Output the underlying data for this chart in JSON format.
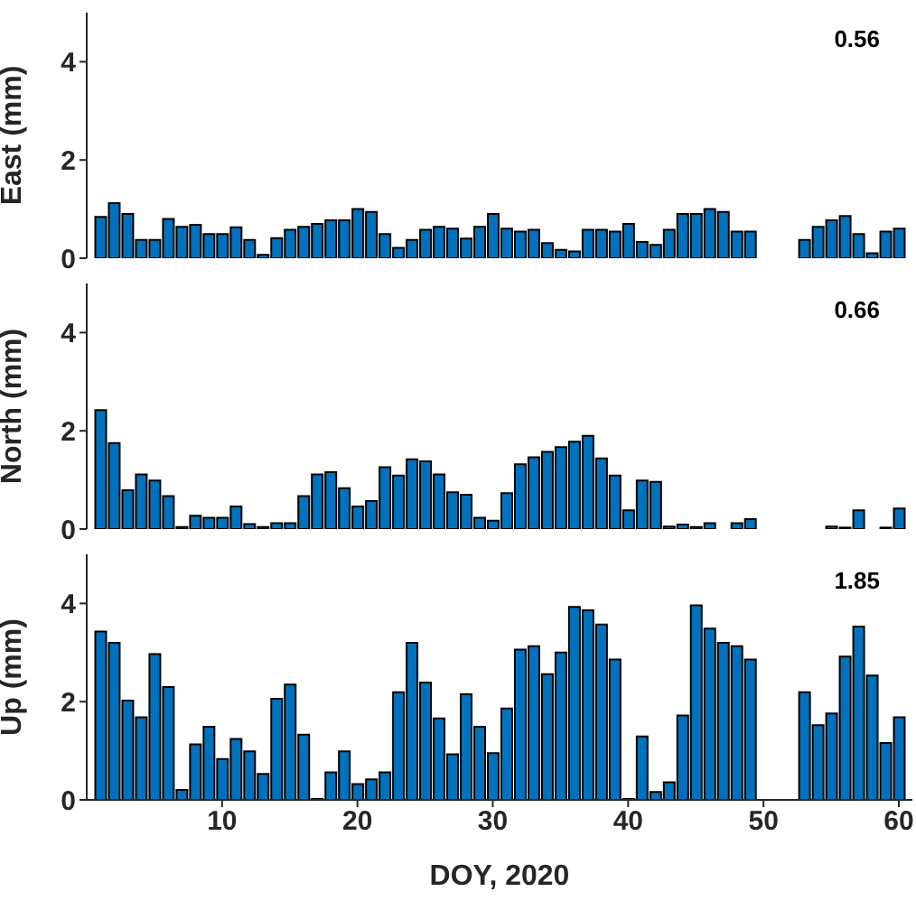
{
  "chart_data": [
    {
      "type": "bar",
      "ylabel": "East (mm)",
      "annotations": [
        "0.56"
      ],
      "color": "#0072bd",
      "x": [
        1,
        2,
        3,
        4,
        5,
        6,
        7,
        8,
        9,
        10,
        11,
        12,
        13,
        14,
        15,
        16,
        17,
        18,
        19,
        20,
        21,
        22,
        23,
        24,
        25,
        26,
        27,
        28,
        29,
        30,
        31,
        32,
        33,
        34,
        35,
        36,
        37,
        38,
        39,
        40,
        41,
        42,
        43,
        44,
        45,
        46,
        47,
        48,
        49,
        50,
        51,
        52,
        53,
        54,
        55,
        56,
        57,
        58,
        59,
        60
      ],
      "values": [
        0.84,
        1.12,
        0.9,
        0.37,
        0.37,
        0.8,
        0.64,
        0.68,
        0.49,
        0.49,
        0.63,
        0.37,
        0.07,
        0.41,
        0.58,
        0.64,
        0.7,
        0.77,
        0.77,
        1.0,
        0.94,
        0.49,
        0.21,
        0.37,
        0.58,
        0.64,
        0.6,
        0.4,
        0.64,
        0.9,
        0.6,
        0.54,
        0.58,
        0.31,
        0.17,
        0.14,
        0.58,
        0.58,
        0.54,
        0.7,
        0.33,
        0.27,
        0.58,
        0.9,
        0.9,
        1.0,
        0.94,
        0.54,
        0.54,
        null,
        null,
        null,
        0.37,
        0.64,
        0.77,
        0.86,
        0.49,
        0.1,
        0.54,
        0.6
      ],
      "xlim": [
        0,
        61
      ],
      "xticks": [
        10,
        20,
        30,
        40,
        50,
        60
      ],
      "ylim": [
        0,
        5
      ],
      "yticks": [
        0,
        2,
        4
      ],
      "tick_labels": "y",
      "grid": false,
      "legend": false
    },
    {
      "type": "bar",
      "ylabel": "North (mm)",
      "annotations": [
        "0.66"
      ],
      "color": "#0072bd",
      "x": [
        1,
        2,
        3,
        4,
        5,
        6,
        7,
        8,
        9,
        10,
        11,
        12,
        13,
        14,
        15,
        16,
        17,
        18,
        19,
        20,
        21,
        22,
        23,
        24,
        25,
        26,
        27,
        28,
        29,
        30,
        31,
        32,
        33,
        34,
        35,
        36,
        37,
        38,
        39,
        40,
        41,
        42,
        43,
        44,
        45,
        46,
        47,
        48,
        49,
        50,
        51,
        52,
        53,
        54,
        55,
        56,
        57,
        58,
        59,
        60
      ],
      "values": [
        2.42,
        1.75,
        0.79,
        1.11,
        0.99,
        0.67,
        0.04,
        0.27,
        0.23,
        0.23,
        0.46,
        0.1,
        0.04,
        0.12,
        0.12,
        0.67,
        1.11,
        1.16,
        0.83,
        0.46,
        0.57,
        1.26,
        1.09,
        1.42,
        1.38,
        1.11,
        0.75,
        0.7,
        0.23,
        0.17,
        0.73,
        1.32,
        1.46,
        1.57,
        1.67,
        1.78,
        1.9,
        1.44,
        1.09,
        0.38,
        0.99,
        0.96,
        0.05,
        0.09,
        0.04,
        0.12,
        null,
        0.12,
        0.2,
        null,
        null,
        null,
        null,
        null,
        0.05,
        0.03,
        0.38,
        null,
        0.03,
        0.42
      ],
      "xlim": [
        0,
        61
      ],
      "xticks": [
        10,
        20,
        30,
        40,
        50,
        60
      ],
      "ylim": [
        0,
        5
      ],
      "yticks": [
        0,
        2,
        4
      ],
      "tick_labels": "y",
      "grid": false,
      "legend": false
    },
    {
      "type": "bar",
      "ylabel": "Up (mm)",
      "xlabel": "DOY, 2020",
      "annotations": [
        "1.85"
      ],
      "color": "#0072bd",
      "x": [
        1,
        2,
        3,
        4,
        5,
        6,
        7,
        8,
        9,
        10,
        11,
        12,
        13,
        14,
        15,
        16,
        17,
        18,
        19,
        20,
        21,
        22,
        23,
        24,
        25,
        26,
        27,
        28,
        29,
        30,
        31,
        32,
        33,
        34,
        35,
        36,
        37,
        38,
        39,
        40,
        41,
        42,
        43,
        44,
        45,
        46,
        47,
        48,
        49,
        50,
        51,
        52,
        53,
        54,
        55,
        56,
        57,
        58,
        59,
        60
      ],
      "values": [
        3.43,
        3.2,
        2.02,
        1.68,
        2.97,
        2.3,
        0.2,
        1.13,
        1.49,
        0.83,
        1.24,
        0.99,
        0.53,
        2.06,
        2.35,
        1.33,
        0.02,
        0.56,
        0.99,
        0.32,
        0.42,
        0.56,
        2.19,
        3.2,
        2.39,
        1.66,
        0.93,
        2.15,
        1.49,
        0.95,
        1.86,
        3.06,
        3.13,
        2.56,
        3.0,
        3.93,
        3.86,
        3.57,
        2.86,
        0.02,
        1.29,
        0.16,
        0.36,
        1.72,
        3.96,
        3.49,
        3.2,
        3.13,
        2.86,
        null,
        null,
        null,
        2.19,
        1.52,
        1.76,
        2.92,
        3.53,
        2.53,
        1.16,
        1.68
      ],
      "xlim": [
        0,
        61
      ],
      "xticks": [
        10,
        20,
        30,
        40,
        50,
        60
      ],
      "ylim": [
        0,
        5
      ],
      "yticks": [
        0,
        2,
        4
      ],
      "grid": false,
      "legend": false
    }
  ]
}
